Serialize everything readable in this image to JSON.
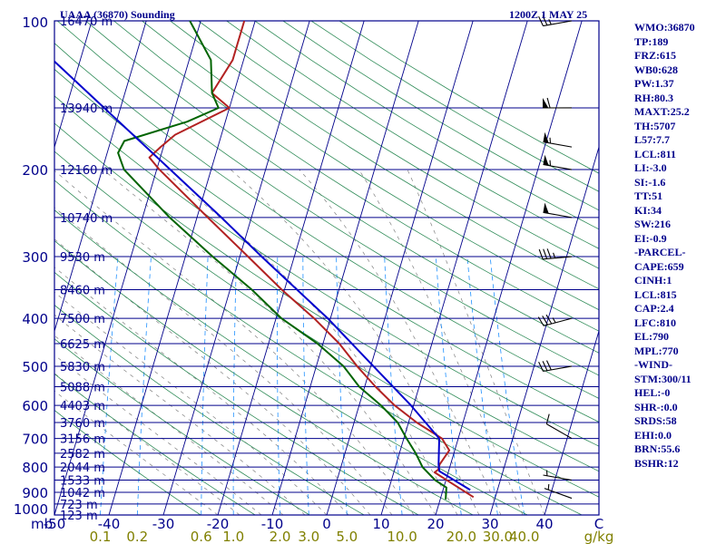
{
  "header": {
    "station": "UAAA (36870) Sounding",
    "time": "1200Z  1 MAY 25"
  },
  "colors": {
    "isobar": "#00008b",
    "isotherm": "#00008b",
    "dry_adiabat": "#2e8b57",
    "moist_adiabat": "#808080",
    "mixing_ratio": "#1e90ff",
    "temperature": "#b22222",
    "dewpoint": "#006400",
    "parcel": "#0000cd",
    "tick_label": "#00008b",
    "mixing_label": "#808000",
    "wind_barb": "#000000",
    "index_text": "#00008b"
  },
  "indices": [
    "WMO:36870",
    "TP:189",
    "FRZ:615",
    "WB0:628",
    "PW:1.37",
    "RH:80.3",
    "MAXT:25.2",
    "TH:5707",
    "L57:7.7",
    "LCL:811",
    "LI:-3.0",
    "SI:-1.6",
    "TT:51",
    "KI:34",
    "SW:216",
    "EI:-0.9",
    "-PARCEL-",
    "CAPE:659",
    "CINH:1",
    "LCL:815",
    "CAP:2.4",
    "LFC:810",
    "EL:790",
    "MPL:770",
    "-WIND-",
    "STM:300/11",
    "HEL:-0",
    "SHR-:0.0",
    "SRDS:58",
    "EHI:0.0",
    "BRN:55.6",
    "BSHR:12"
  ],
  "chart_data": {
    "type": "line",
    "title": "UAAA (36870) Sounding",
    "subtitle": "1200Z  1 MAY 25",
    "xlabel": "",
    "ylabel": "",
    "skew_t_log_p": true,
    "xlim": [
      -50,
      50
    ],
    "ylim_hPa": [
      1000,
      100
    ],
    "log_y": true,
    "grid": true,
    "temperature_ticks": [
      {
        "value": -50,
        "label": "-50"
      },
      {
        "value": -40,
        "label": "-40"
      },
      {
        "value": -30,
        "label": "-30"
      },
      {
        "value": -20,
        "label": "-20"
      },
      {
        "value": -10,
        "label": "-10"
      },
      {
        "value": 0,
        "label": "0"
      },
      {
        "value": 10,
        "label": "10"
      },
      {
        "value": 20,
        "label": "20"
      },
      {
        "value": 30,
        "label": "30"
      },
      {
        "value": 40,
        "label": "40"
      },
      {
        "value": 50,
        "label": "C"
      }
    ],
    "unit_left": "mb",
    "pressure_ticks": [
      {
        "value": 100,
        "label": "100"
      },
      {
        "value": 200,
        "label": "200"
      },
      {
        "value": 300,
        "label": "300"
      },
      {
        "value": 400,
        "label": "400"
      },
      {
        "value": 500,
        "label": "500"
      },
      {
        "value": 600,
        "label": "600"
      },
      {
        "value": 700,
        "label": "700"
      },
      {
        "value": 800,
        "label": "800"
      },
      {
        "value": 900,
        "label": "900"
      },
      {
        "value": 1000,
        "label": "1000"
      }
    ],
    "height_labels": [
      {
        "p": 100,
        "label": "16470 m"
      },
      {
        "p": 150,
        "label": "13940 m"
      },
      {
        "p": 200,
        "label": "12160 m"
      },
      {
        "p": 250,
        "label": "10740 m"
      },
      {
        "p": 300,
        "label": "9530 m"
      },
      {
        "p": 350,
        "label": "8460 m"
      },
      {
        "p": 400,
        "label": "7500 m"
      },
      {
        "p": 450,
        "label": "6625 m"
      },
      {
        "p": 500,
        "label": "5830 m"
      },
      {
        "p": 550,
        "label": "5088 m"
      },
      {
        "p": 600,
        "label": "4403 m"
      },
      {
        "p": 650,
        "label": "3760 m"
      },
      {
        "p": 700,
        "label": "3156 m"
      },
      {
        "p": 750,
        "label": "2582 m"
      },
      {
        "p": 800,
        "label": "2044 m"
      },
      {
        "p": 850,
        "label": "1533 m"
      },
      {
        "p": 900,
        "label": "1042 m"
      },
      {
        "p": 950,
        "label": "723 m"
      },
      {
        "p": 1000,
        "label": "123 m"
      }
    ],
    "mixing_ratio_unit": "g/kg",
    "mixing_ratio_labels": [
      {
        "value": 0.1,
        "label": "0.1"
      },
      {
        "value": 0.2,
        "label": "0.2"
      },
      {
        "value": 0.6,
        "label": "0.6"
      },
      {
        "value": 1.0,
        "label": "1.0"
      },
      {
        "value": 2.0,
        "label": "2.0"
      },
      {
        "value": 3.0,
        "label": "3.0"
      },
      {
        "value": 5.0,
        "label": "5.0"
      },
      {
        "value": 10.0,
        "label": "10.0"
      },
      {
        "value": 20.0,
        "label": "20.0"
      },
      {
        "value": 30.0,
        "label": "30.0"
      },
      {
        "value": 40.0,
        "label": "40.0"
      }
    ],
    "series": [
      {
        "role": "temperature",
        "points": [
          {
            "p": 920,
            "t": 26.0
          },
          {
            "p": 860,
            "t": 21.0
          },
          {
            "p": 820,
            "t": 17.5
          },
          {
            "p": 810,
            "t": 18.0
          },
          {
            "p": 790,
            "t": 18.0
          },
          {
            "p": 740,
            "t": 19.0
          },
          {
            "p": 700,
            "t": 17.0
          },
          {
            "p": 650,
            "t": 11.5
          },
          {
            "p": 600,
            "t": 6.5
          },
          {
            "p": 550,
            "t": 2.0
          },
          {
            "p": 500,
            "t": -2.5
          },
          {
            "p": 450,
            "t": -7.0
          },
          {
            "p": 400,
            "t": -13.0
          },
          {
            "p": 350,
            "t": -20.5
          },
          {
            "p": 300,
            "t": -28.5
          },
          {
            "p": 250,
            "t": -38.0
          },
          {
            "p": 200,
            "t": -49.5
          },
          {
            "p": 189,
            "t": -52.0
          },
          {
            "p": 180,
            "t": -50.5
          },
          {
            "p": 170,
            "t": -48.5
          },
          {
            "p": 150,
            "t": -40.0
          },
          {
            "p": 140,
            "t": -44.0
          },
          {
            "p": 120,
            "t": -42.0
          },
          {
            "p": 100,
            "t": -42.0
          }
        ]
      },
      {
        "role": "dewpoint",
        "points": [
          {
            "p": 930,
            "t": 21.0
          },
          {
            "p": 880,
            "t": 20.5
          },
          {
            "p": 850,
            "t": 18.0
          },
          {
            "p": 800,
            "t": 15.0
          },
          {
            "p": 750,
            "t": 13.0
          },
          {
            "p": 700,
            "t": 10.5
          },
          {
            "p": 650,
            "t": 8.0
          },
          {
            "p": 600,
            "t": 4.0
          },
          {
            "p": 550,
            "t": -1.0
          },
          {
            "p": 500,
            "t": -5.0
          },
          {
            "p": 450,
            "t": -11.0
          },
          {
            "p": 400,
            "t": -19.0
          },
          {
            "p": 350,
            "t": -26.0
          },
          {
            "p": 300,
            "t": -35.0
          },
          {
            "p": 250,
            "t": -45.0
          },
          {
            "p": 200,
            "t": -56.0
          },
          {
            "p": 185,
            "t": -58.0
          },
          {
            "p": 175,
            "t": -57.5
          },
          {
            "p": 160,
            "t": -47.0
          },
          {
            "p": 150,
            "t": -42.0
          },
          {
            "p": 140,
            "t": -44.0
          },
          {
            "p": 120,
            "t": -46.0
          },
          {
            "p": 100,
            "t": -52.0
          }
        ]
      },
      {
        "role": "parcel",
        "points": [
          {
            "p": 890,
            "t": 25.0
          },
          {
            "p": 815,
            "t": 18.3
          },
          {
            "p": 790,
            "t": 17.8
          },
          {
            "p": 700,
            "t": 16.5
          },
          {
            "p": 600,
            "t": 9.5
          },
          {
            "p": 500,
            "t": 0.5
          },
          {
            "p": 400,
            "t": -10.5
          },
          {
            "p": 300,
            "t": -26.0
          },
          {
            "p": 250,
            "t": -35.5
          },
          {
            "p": 200,
            "t": -47.5
          },
          {
            "p": 150,
            "t": -63.0
          },
          {
            "p": 120,
            "t": -75.0
          }
        ]
      }
    ],
    "winds": [
      {
        "p": 100,
        "dir": 260,
        "kt": 25
      },
      {
        "p": 150,
        "dir": 270,
        "kt": 60
      },
      {
        "p": 180,
        "dir": 280,
        "kt": 55
      },
      {
        "p": 200,
        "dir": 280,
        "kt": 55
      },
      {
        "p": 250,
        "dir": 280,
        "kt": 50
      },
      {
        "p": 300,
        "dir": 265,
        "kt": 35
      },
      {
        "p": 400,
        "dir": 255,
        "kt": 35
      },
      {
        "p": 500,
        "dir": 260,
        "kt": 30
      },
      {
        "p": 700,
        "dir": 300,
        "kt": 10
      },
      {
        "p": 850,
        "dir": 280,
        "kt": 5
      },
      {
        "p": 925,
        "dir": 290,
        "kt": 5
      }
    ]
  }
}
